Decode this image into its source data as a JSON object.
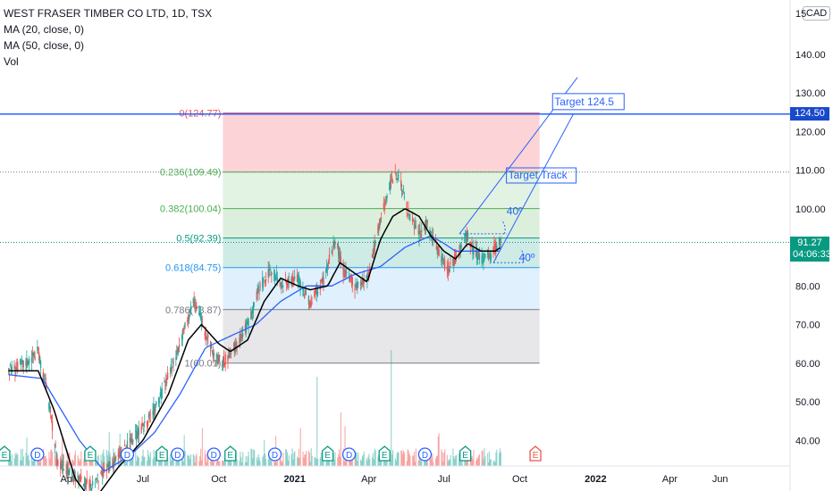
{
  "legend": {
    "symbol": "WEST FRASER TIMBER CO LTD, 1D, TSX",
    "ma20": "MA (20, close, 0)",
    "ma50": "MA (50, close, 0)",
    "vol": "Vol"
  },
  "currency": "CAD",
  "price_axis_top_fragment": "15",
  "target_badge": "124.50",
  "last_price": "91.27",
  "countdown": "04:06:33",
  "colors": {
    "up": "#26a69a",
    "down": "#ef5350",
    "ma20": "#000000",
    "ma50": "#2962ff",
    "fib_0": "#ef5350",
    "fib_236": "#4caf50",
    "fib_382": "#4caf50",
    "fib_5": "#089981",
    "fib_618": "#2196f3",
    "fib_786": "#787b86",
    "target": "#2962ff"
  },
  "chart_data": {
    "type": "candlestick",
    "title": "WEST FRASER TIMBER CO LTD, 1D, TSX",
    "ylim": [
      35,
      155
    ],
    "y_ticks": [
      40,
      50,
      60,
      70,
      80,
      90,
      100,
      110,
      120,
      130,
      140
    ],
    "x_ticks": [
      {
        "label": "Apr",
        "date": "2020-04-01"
      },
      {
        "label": "Jul",
        "date": "2020-07-01"
      },
      {
        "label": "Oct",
        "date": "2020-10-01"
      },
      {
        "label": "2021",
        "date": "2021-01-01"
      },
      {
        "label": "Apr",
        "date": "2021-04-01"
      },
      {
        "label": "Jul",
        "date": "2021-07-01"
      },
      {
        "label": "Oct",
        "date": "2021-10-01"
      },
      {
        "label": "2022",
        "date": "2022-01-01"
      },
      {
        "label": "Apr",
        "date": "2022-04-01"
      },
      {
        "label": "Jun",
        "date": "2022-06-01"
      }
    ],
    "price_anchors": [
      [
        "2020-01-20",
        58
      ],
      [
        "2020-02-10",
        60
      ],
      [
        "2020-02-24",
        63
      ],
      [
        "2020-03-05",
        55
      ],
      [
        "2020-03-19",
        35
      ],
      [
        "2020-04-10",
        30
      ],
      [
        "2020-05-01",
        28
      ],
      [
        "2020-05-20",
        33
      ],
      [
        "2020-06-10",
        38
      ],
      [
        "2020-07-01",
        43
      ],
      [
        "2020-07-20",
        50
      ],
      [
        "2020-08-10",
        62
      ],
      [
        "2020-08-25",
        72
      ],
      [
        "2020-09-01",
        76
      ],
      [
        "2020-09-15",
        68
      ],
      [
        "2020-09-25",
        62
      ],
      [
        "2020-10-06",
        60
      ],
      [
        "2020-10-20",
        64
      ],
      [
        "2020-11-05",
        70
      ],
      [
        "2020-11-20",
        80
      ],
      [
        "2020-12-04",
        84
      ],
      [
        "2020-12-18",
        80
      ],
      [
        "2021-01-05",
        82
      ],
      [
        "2021-01-20",
        75
      ],
      [
        "2021-02-05",
        82
      ],
      [
        "2021-02-20",
        92
      ],
      [
        "2021-03-01",
        84
      ],
      [
        "2021-03-15",
        80
      ],
      [
        "2021-03-30",
        82
      ],
      [
        "2021-04-15",
        97
      ],
      [
        "2021-04-26",
        106
      ],
      [
        "2021-05-07",
        109
      ],
      [
        "2021-05-20",
        98
      ],
      [
        "2021-06-01",
        93
      ],
      [
        "2021-06-10",
        96
      ],
      [
        "2021-06-22",
        90
      ],
      [
        "2021-07-05",
        84
      ],
      [
        "2021-07-15",
        87
      ],
      [
        "2021-07-27",
        94
      ],
      [
        "2021-08-06",
        89
      ],
      [
        "2021-08-17",
        87
      ],
      [
        "2021-08-27",
        88
      ],
      [
        "2021-09-08",
        92
      ]
    ],
    "ma20_anchors": [
      [
        "2020-01-20",
        58
      ],
      [
        "2020-02-25",
        58
      ],
      [
        "2020-03-15",
        48
      ],
      [
        "2020-04-10",
        30
      ],
      [
        "2020-05-01",
        24
      ],
      [
        "2020-06-01",
        33
      ],
      [
        "2020-07-01",
        40
      ],
      [
        "2020-08-01",
        52
      ],
      [
        "2020-08-25",
        66
      ],
      [
        "2020-09-10",
        70
      ],
      [
        "2020-10-01",
        65
      ],
      [
        "2020-10-15",
        63
      ],
      [
        "2020-11-05",
        66
      ],
      [
        "2020-11-25",
        76
      ],
      [
        "2020-12-15",
        82
      ],
      [
        "2021-01-05",
        80
      ],
      [
        "2021-01-20",
        79
      ],
      [
        "2021-02-10",
        80
      ],
      [
        "2021-02-25",
        86
      ],
      [
        "2021-03-10",
        84
      ],
      [
        "2021-03-30",
        81
      ],
      [
        "2021-04-15",
        92
      ],
      [
        "2021-04-30",
        98
      ],
      [
        "2021-05-15",
        100
      ],
      [
        "2021-06-01",
        98
      ],
      [
        "2021-06-15",
        93
      ],
      [
        "2021-07-01",
        89
      ],
      [
        "2021-07-15",
        87
      ],
      [
        "2021-07-30",
        91
      ],
      [
        "2021-08-15",
        89
      ],
      [
        "2021-09-01",
        89
      ],
      [
        "2021-09-08",
        90
      ]
    ],
    "ma50_anchors": [
      [
        "2020-01-20",
        57
      ],
      [
        "2020-03-01",
        56
      ],
      [
        "2020-04-15",
        40
      ],
      [
        "2020-05-15",
        32
      ],
      [
        "2020-06-15",
        36
      ],
      [
        "2020-07-15",
        42
      ],
      [
        "2020-08-15",
        52
      ],
      [
        "2020-09-15",
        64
      ],
      [
        "2020-10-15",
        67
      ],
      [
        "2020-11-15",
        70
      ],
      [
        "2020-12-15",
        76
      ],
      [
        "2021-01-15",
        80
      ],
      [
        "2021-02-15",
        80
      ],
      [
        "2021-03-15",
        83
      ],
      [
        "2021-04-15",
        85
      ],
      [
        "2021-05-15",
        90
      ],
      [
        "2021-06-15",
        93
      ],
      [
        "2021-07-01",
        91
      ],
      [
        "2021-07-15",
        89
      ],
      [
        "2021-08-15",
        89
      ],
      [
        "2021-09-08",
        89
      ]
    ],
    "fibonacci": {
      "start_date": "2020-10-06",
      "end_date": "2021-10-25",
      "levels": [
        {
          "key": "fib_0",
          "label": "0(124.77)",
          "value": 124.77
        },
        {
          "key": "fib_236",
          "label": "0.236(109.49)",
          "value": 109.49
        },
        {
          "key": "fib_382",
          "label": "0.382(100.04)",
          "value": 100.04
        },
        {
          "key": "fib_5",
          "label": "0.5(92.39)",
          "value": 92.39
        },
        {
          "key": "fib_618",
          "label": "0.618(84.75)",
          "value": 84.75
        },
        {
          "key": "fib_786",
          "label": "0.786(73.87)",
          "value": 73.87
        },
        {
          "key": "fib_1",
          "label": "1(60.01)",
          "value": 60.01
        }
      ]
    },
    "horizontal_line": {
      "value": 124.5
    },
    "channel": {
      "upper": [
        [
          "2021-07-20",
          93.5
        ],
        [
          "2021-12-10",
          134
        ]
      ],
      "lower": [
        [
          "2021-08-30",
          86
        ],
        [
          "2021-12-05",
          124.5
        ]
      ]
    },
    "annotations": [
      {
        "key": "target",
        "text": "Target 124.5",
        "date": "2021-11-12",
        "value": 126.8
      },
      {
        "key": "track",
        "text": "Target Track",
        "date": "2021-09-17",
        "value": 107.8
      },
      {
        "key": "angle1",
        "text": "40º",
        "date": "2021-09-15",
        "value": 98.4
      },
      {
        "key": "angle2",
        "text": "40º",
        "date": "2021-09-30",
        "value": 86.4
      }
    ],
    "earnings_events": [
      {
        "letter": "E",
        "date": "2020-01-15"
      },
      {
        "letter": "D",
        "date": "2020-02-24"
      },
      {
        "letter": "E",
        "date": "2020-04-28"
      },
      {
        "letter": "D",
        "date": "2020-06-12"
      },
      {
        "letter": "E",
        "date": "2020-07-24"
      },
      {
        "letter": "D",
        "date": "2020-08-12"
      },
      {
        "letter": "D",
        "date": "2020-09-25"
      },
      {
        "letter": "E",
        "date": "2020-10-15"
      },
      {
        "letter": "D",
        "date": "2020-12-08"
      },
      {
        "letter": "E",
        "date": "2021-02-10"
      },
      {
        "letter": "D",
        "date": "2021-03-08"
      },
      {
        "letter": "E",
        "date": "2021-04-20"
      },
      {
        "letter": "D",
        "date": "2021-06-08"
      },
      {
        "letter": "E",
        "date": "2021-07-27"
      },
      {
        "letter": "E",
        "date": "2021-10-20"
      }
    ]
  }
}
